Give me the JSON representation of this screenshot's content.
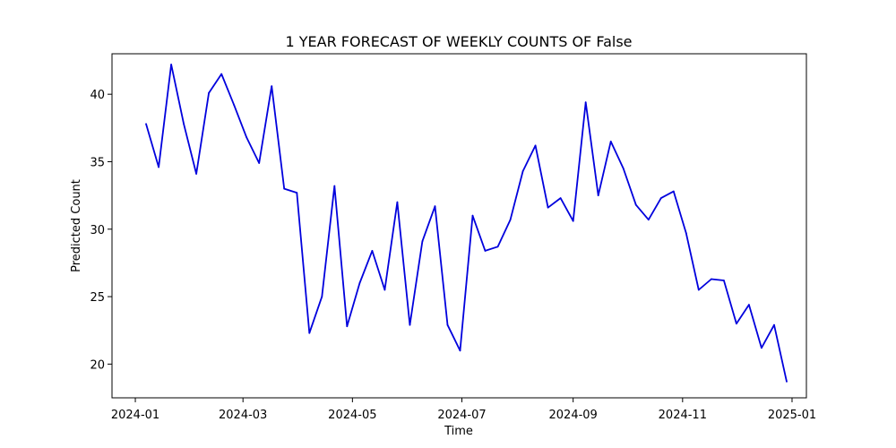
{
  "chart_data": {
    "type": "line",
    "title": "1 YEAR FORECAST OF WEEKLY COUNTS OF False",
    "xlabel": "Time",
    "ylabel": "Predicted Count",
    "x_range": [
      "2023-12-19",
      "2025-01-09"
    ],
    "ylim": [
      17.5,
      43.0
    ],
    "x_ticks": [
      {
        "date": "2024-01-01",
        "label": "2024-01"
      },
      {
        "date": "2024-03-01",
        "label": "2024-03"
      },
      {
        "date": "2024-05-01",
        "label": "2024-05"
      },
      {
        "date": "2024-07-01",
        "label": "2024-07"
      },
      {
        "date": "2024-09-01",
        "label": "2024-09"
      },
      {
        "date": "2024-11-01",
        "label": "2024-11"
      },
      {
        "date": "2025-01-01",
        "label": "2025-01"
      }
    ],
    "y_ticks": [
      20,
      25,
      30,
      35,
      40
    ],
    "grid": false,
    "series": [
      {
        "color": "#0000dd",
        "x": [
          "2024-01-07",
          "2024-01-14",
          "2024-01-21",
          "2024-01-28",
          "2024-02-04",
          "2024-02-11",
          "2024-02-18",
          "2024-02-25",
          "2024-03-03",
          "2024-03-10",
          "2024-03-17",
          "2024-03-24",
          "2024-03-31",
          "2024-04-07",
          "2024-04-14",
          "2024-04-21",
          "2024-04-28",
          "2024-05-05",
          "2024-05-12",
          "2024-05-19",
          "2024-05-26",
          "2024-06-02",
          "2024-06-09",
          "2024-06-16",
          "2024-06-23",
          "2024-06-30",
          "2024-07-07",
          "2024-07-14",
          "2024-07-21",
          "2024-07-28",
          "2024-08-04",
          "2024-08-11",
          "2024-08-18",
          "2024-08-25",
          "2024-09-01",
          "2024-09-08",
          "2024-09-15",
          "2024-09-22",
          "2024-09-29",
          "2024-10-06",
          "2024-10-13",
          "2024-10-20",
          "2024-10-27",
          "2024-11-03",
          "2024-11-10",
          "2024-11-17",
          "2024-11-24",
          "2024-12-01",
          "2024-12-08",
          "2024-12-15",
          "2024-12-22",
          "2024-12-29"
        ],
        "y": [
          37.8,
          34.6,
          42.2,
          37.8,
          34.1,
          40.1,
          41.5,
          39.2,
          36.8,
          34.9,
          40.6,
          33.0,
          32.7,
          22.3,
          25.0,
          33.2,
          22.8,
          26.0,
          28.4,
          25.5,
          32.0,
          22.9,
          29.1,
          31.7,
          22.9,
          21.0,
          31.0,
          28.4,
          28.7,
          30.7,
          34.3,
          36.2,
          31.6,
          32.3,
          30.6,
          39.4,
          32.5,
          36.5,
          34.5,
          31.8,
          30.7,
          32.3,
          32.8,
          29.7,
          25.5,
          26.3,
          26.2,
          23.0,
          24.4,
          21.2,
          22.9,
          18.7
        ]
      }
    ]
  }
}
